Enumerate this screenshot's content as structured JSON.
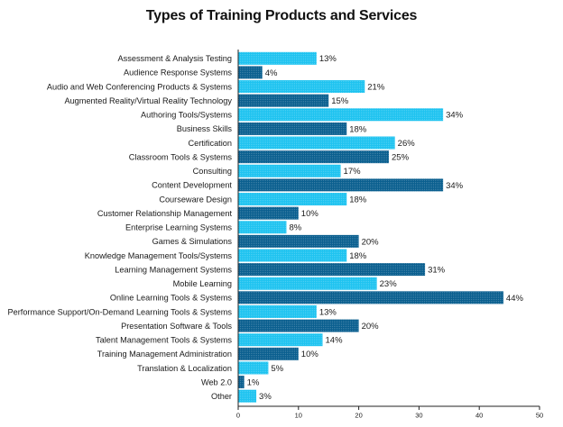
{
  "chart_data": {
    "type": "bar",
    "orientation": "horizontal",
    "title": "Types of Training Products and Services",
    "xlabel": "",
    "ylabel": "",
    "xlim": [
      0,
      50
    ],
    "xticks": [
      0,
      10,
      20,
      30,
      40,
      50
    ],
    "grid": false,
    "legend": "none",
    "value_suffix": "%",
    "colors": {
      "light": "#1ec3f0",
      "dark": "#0a5f8f",
      "axis": "#222222"
    },
    "categories": [
      "Assessment & Analysis Testing",
      "Audience Response Systems",
      "Audio and Web Conferencing Products & Systems",
      "Augmented Reality/Virtual Reality Technology",
      "Authoring Tools/Systems",
      "Business Skills",
      "Certification",
      "Classroom Tools & Systems",
      "Consulting",
      "Content Development",
      "Courseware Design",
      "Customer Relationship Management",
      "Enterprise Learning Systems",
      "Games & Simulations",
      "Knowledge Management Tools/Systems",
      "Learning Management Systems",
      "Mobile Learning",
      "Online Learning Tools & Systems",
      "Performance Support/On-Demand Learning Tools & Systems",
      "Presentation Software & Tools",
      "Talent Management Tools & Systems",
      "Training Management Administration",
      "Translation & Localization",
      "Web 2.0",
      "Other"
    ],
    "values": [
      13,
      4,
      21,
      15,
      34,
      18,
      26,
      25,
      17,
      34,
      18,
      10,
      8,
      20,
      18,
      31,
      23,
      44,
      13,
      20,
      14,
      10,
      5,
      1,
      3
    ],
    "bar_styles": [
      "light",
      "dark",
      "light",
      "dark",
      "light",
      "dark",
      "light",
      "dark",
      "light",
      "dark",
      "light",
      "dark",
      "light",
      "dark",
      "light",
      "dark",
      "light",
      "dark",
      "light",
      "dark",
      "light",
      "dark",
      "light",
      "dark",
      "light"
    ]
  }
}
